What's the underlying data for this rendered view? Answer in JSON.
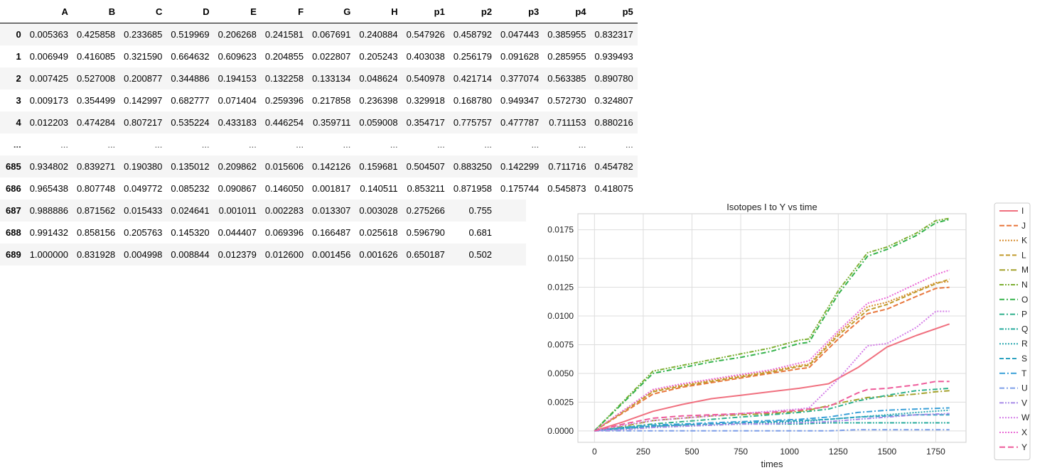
{
  "table": {
    "index_header": "",
    "columns": [
      "A",
      "B",
      "C",
      "D",
      "E",
      "F",
      "G",
      "H",
      "p1",
      "p2",
      "p3",
      "p4",
      "p5"
    ],
    "rows": [
      {
        "index": "0",
        "cells": [
          "0.005363",
          "0.425858",
          "0.233685",
          "0.519969",
          "0.206268",
          "0.241581",
          "0.067691",
          "0.240884",
          "0.547926",
          "0.458792",
          "0.047443",
          "0.385955",
          "0.832317"
        ]
      },
      {
        "index": "1",
        "cells": [
          "0.006949",
          "0.416085",
          "0.321590",
          "0.664632",
          "0.609623",
          "0.204855",
          "0.022807",
          "0.205243",
          "0.403038",
          "0.256179",
          "0.091628",
          "0.285955",
          "0.939493"
        ]
      },
      {
        "index": "2",
        "cells": [
          "0.007425",
          "0.527008",
          "0.200877",
          "0.344886",
          "0.194153",
          "0.132258",
          "0.133134",
          "0.048624",
          "0.540978",
          "0.421714",
          "0.377074",
          "0.563385",
          "0.890780"
        ]
      },
      {
        "index": "3",
        "cells": [
          "0.009173",
          "0.354499",
          "0.142997",
          "0.682777",
          "0.071404",
          "0.259396",
          "0.217858",
          "0.236398",
          "0.329918",
          "0.168780",
          "0.949347",
          "0.572730",
          "0.324807"
        ]
      },
      {
        "index": "4",
        "cells": [
          "0.012203",
          "0.474284",
          "0.807217",
          "0.535224",
          "0.433183",
          "0.446254",
          "0.359711",
          "0.059008",
          "0.354717",
          "0.775757",
          "0.477787",
          "0.711153",
          "0.880216"
        ]
      },
      {
        "index": "...",
        "cells": [
          "...",
          "...",
          "...",
          "...",
          "...",
          "...",
          "...",
          "...",
          "...",
          "...",
          "...",
          "...",
          "..."
        ]
      },
      {
        "index": "685",
        "cells": [
          "0.934802",
          "0.839271",
          "0.190380",
          "0.135012",
          "0.209862",
          "0.015606",
          "0.142126",
          "0.159681",
          "0.504507",
          "0.883250",
          "0.142299",
          "0.711716",
          "0.454782"
        ]
      },
      {
        "index": "686",
        "cells": [
          "0.965438",
          "0.807748",
          "0.049772",
          "0.085232",
          "0.090867",
          "0.146050",
          "0.001817",
          "0.140511",
          "0.853211",
          "0.871958",
          "0.175744",
          "0.545873",
          "0.418075"
        ]
      },
      {
        "index": "687",
        "cells": [
          "0.988886",
          "0.871562",
          "0.015433",
          "0.024641",
          "0.001011",
          "0.002283",
          "0.013307",
          "0.003028",
          "0.275266",
          "0.755",
          "",
          "",
          ""
        ]
      },
      {
        "index": "688",
        "cells": [
          "0.991432",
          "0.858156",
          "0.205763",
          "0.145320",
          "0.044407",
          "0.069396",
          "0.166487",
          "0.025618",
          "0.596790",
          "0.681",
          "",
          "",
          ""
        ]
      },
      {
        "index": "689",
        "cells": [
          "1.000000",
          "0.831928",
          "0.004998",
          "0.008844",
          "0.012379",
          "0.012600",
          "0.001456",
          "0.001626",
          "0.650187",
          "0.502",
          "",
          "",
          ""
        ]
      }
    ]
  },
  "chart_data": {
    "type": "line",
    "title": "Isotopes I to Y vs time",
    "xlabel": "times",
    "ylabel": "",
    "xlim": [
      -85,
      1905
    ],
    "ylim": [
      -0.001,
      0.0189
    ],
    "xticks": [
      0,
      250,
      500,
      750,
      1000,
      1250,
      1500,
      1750
    ],
    "xtick_labels": [
      "0",
      "250",
      "500",
      "750",
      "1000",
      "1250",
      "1500",
      "1750"
    ],
    "yticks": [
      0.0,
      0.0025,
      0.005,
      0.0075,
      0.01,
      0.0125,
      0.015,
      0.0175
    ],
    "ytick_labels": [
      "0.0000",
      "0.0025",
      "0.0050",
      "0.0075",
      "0.0100",
      "0.0125",
      "0.0150",
      "0.0175"
    ],
    "grid": true,
    "legend_position": "outside-right",
    "series": [
      {
        "name": "I",
        "color": "#f0707f",
        "dash": "",
        "x": [
          0,
          150,
          300,
          450,
          600,
          750,
          900,
          1050,
          1200,
          1350,
          1500,
          1650,
          1820
        ],
        "y": [
          0,
          0.0008,
          0.0017,
          0.0023,
          0.0028,
          0.0031,
          0.0034,
          0.0037,
          0.0041,
          0.0055,
          0.0073,
          0.0083,
          0.0093
        ]
      },
      {
        "name": "J",
        "color": "#e8773d",
        "dash": "7,3",
        "x": [
          0,
          150,
          300,
          450,
          600,
          750,
          900,
          1050,
          1100,
          1250,
          1400,
          1500,
          1650,
          1750,
          1820
        ],
        "y": [
          0,
          0.0016,
          0.0032,
          0.0038,
          0.0042,
          0.0046,
          0.005,
          0.0054,
          0.0055,
          0.008,
          0.0102,
          0.0106,
          0.0117,
          0.0124,
          0.0125
        ]
      },
      {
        "name": "K",
        "color": "#d68b2b",
        "dash": "2,2",
        "x": [
          0,
          150,
          300,
          450,
          600,
          750,
          900,
          1050,
          1100,
          1250,
          1400,
          1500,
          1650,
          1750,
          1820
        ],
        "y": [
          0,
          0.0018,
          0.0035,
          0.004,
          0.0044,
          0.0048,
          0.0052,
          0.0057,
          0.0058,
          0.0085,
          0.0108,
          0.0112,
          0.0122,
          0.0129,
          0.013
        ]
      },
      {
        "name": "L",
        "color": "#c19a2b",
        "dash": "6,3",
        "x": [
          0,
          150,
          300,
          450,
          600,
          750,
          900,
          1050,
          1100,
          1250,
          1400,
          1500,
          1650,
          1750,
          1820
        ],
        "y": [
          0,
          0.0017,
          0.0034,
          0.0039,
          0.0043,
          0.0047,
          0.0051,
          0.0056,
          0.0057,
          0.0083,
          0.0105,
          0.011,
          0.0121,
          0.0128,
          0.0132
        ]
      },
      {
        "name": "M",
        "color": "#a4a12b",
        "dash": "8,3,2,3",
        "x": [
          0,
          150,
          300,
          450,
          600,
          750,
          900,
          1050,
          1100,
          1250,
          1400,
          1500,
          1650,
          1750,
          1820
        ],
        "y": [
          0,
          0.0004,
          0.0009,
          0.0011,
          0.0013,
          0.0014,
          0.0015,
          0.0017,
          0.0018,
          0.0024,
          0.0029,
          0.003,
          0.0032,
          0.0034,
          0.0035
        ]
      },
      {
        "name": "N",
        "color": "#7caf32",
        "dash": "6,2,2,2,2,2",
        "x": [
          0,
          150,
          300,
          450,
          600,
          750,
          900,
          1050,
          1100,
          1250,
          1400,
          1500,
          1650,
          1750,
          1820
        ],
        "y": [
          0,
          0.0026,
          0.0052,
          0.0057,
          0.0062,
          0.0067,
          0.0072,
          0.0079,
          0.008,
          0.0122,
          0.0155,
          0.016,
          0.0172,
          0.0183,
          0.0185
        ]
      },
      {
        "name": "O",
        "color": "#33b24b",
        "dash": "7,3,2,3",
        "x": [
          0,
          150,
          300,
          450,
          600,
          750,
          900,
          1050,
          1100,
          1250,
          1400,
          1500,
          1650,
          1750,
          1820
        ],
        "y": [
          0,
          0.0025,
          0.005,
          0.0055,
          0.006,
          0.0064,
          0.0069,
          0.0076,
          0.0077,
          0.0119,
          0.0152,
          0.0158,
          0.017,
          0.0181,
          0.0184
        ]
      },
      {
        "name": "P",
        "color": "#2fb08c",
        "dash": "7,3,2,3",
        "x": [
          0,
          150,
          300,
          450,
          600,
          750,
          900,
          1050,
          1200,
          1350,
          1500,
          1650,
          1820
        ],
        "y": [
          0,
          0.0003,
          0.0006,
          0.0008,
          0.001,
          0.0012,
          0.0014,
          0.0016,
          0.0019,
          0.0026,
          0.0031,
          0.0035,
          0.0037
        ]
      },
      {
        "name": "Q",
        "color": "#27ab9e",
        "dash": "6,2,2,2,2,2",
        "x": [
          0,
          150,
          300,
          450,
          600,
          750,
          900,
          1050,
          1200,
          1350,
          1500,
          1650,
          1820
        ],
        "y": [
          0,
          0.0003,
          0.0004,
          0.0005,
          0.0005,
          0.0006,
          0.0006,
          0.0006,
          0.0007,
          0.0007,
          0.0007,
          0.0007,
          0.0007
        ]
      },
      {
        "name": "R",
        "color": "#2aa7b0",
        "dash": "2,2",
        "x": [
          0,
          150,
          300,
          450,
          600,
          750,
          900,
          1050,
          1200,
          1350,
          1500,
          1650,
          1820
        ],
        "y": [
          0,
          0.0002,
          0.0003,
          0.0004,
          0.0005,
          0.0006,
          0.0007,
          0.0008,
          0.001,
          0.0012,
          0.0014,
          0.0016,
          0.0018
        ]
      },
      {
        "name": "S",
        "color": "#2ca2c0",
        "dash": "6,3",
        "x": [
          0,
          150,
          300,
          450,
          600,
          750,
          900,
          1050,
          1200,
          1350,
          1500,
          1650,
          1820
        ],
        "y": [
          0,
          0.0002,
          0.0004,
          0.0005,
          0.0006,
          0.0007,
          0.0008,
          0.0009,
          0.001,
          0.0012,
          0.0013,
          0.0014,
          0.0014
        ]
      },
      {
        "name": "T",
        "color": "#3aa0d8",
        "dash": "8,3,2,3",
        "x": [
          0,
          150,
          300,
          450,
          600,
          750,
          900,
          1050,
          1200,
          1350,
          1500,
          1650,
          1820
        ],
        "y": [
          0,
          0.0003,
          0.0005,
          0.0006,
          0.0007,
          0.0008,
          0.0009,
          0.001,
          0.0012,
          0.0016,
          0.0018,
          0.0019,
          0.002
        ]
      },
      {
        "name": "U",
        "color": "#7c9ee8",
        "dash": "7,3,2,3",
        "x": [
          0,
          150,
          300,
          450,
          600,
          750,
          900,
          1050,
          1200,
          1350,
          1500,
          1650,
          1820
        ],
        "y": [
          0,
          0.0,
          0.0,
          0.0,
          0.0,
          0.0,
          0.0,
          0.0,
          0.0,
          0.0001,
          0.0001,
          0.0001,
          0.0001
        ]
      },
      {
        "name": "V",
        "color": "#a88be8",
        "dash": "6,2,2,2,2,2",
        "x": [
          0,
          150,
          300,
          450,
          600,
          750,
          900,
          1050,
          1200,
          1350,
          1500,
          1650,
          1820
        ],
        "y": [
          0,
          0.0001,
          0.0003,
          0.0004,
          0.0005,
          0.0006,
          0.0006,
          0.0007,
          0.0008,
          0.001,
          0.0012,
          0.0014,
          0.0015
        ]
      },
      {
        "name": "W",
        "color": "#d47ee8",
        "dash": "2,2",
        "x": [
          0,
          150,
          300,
          450,
          600,
          750,
          900,
          1050,
          1100,
          1250,
          1400,
          1500,
          1650,
          1750,
          1820
        ],
        "y": [
          0,
          0.0005,
          0.0009,
          0.0011,
          0.0013,
          0.0015,
          0.0017,
          0.0019,
          0.002,
          0.0045,
          0.0074,
          0.0076,
          0.009,
          0.0104,
          0.0104
        ]
      },
      {
        "name": "X",
        "color": "#ea6ad6",
        "dash": "2,2",
        "x": [
          0,
          150,
          300,
          450,
          600,
          750,
          900,
          1050,
          1100,
          1250,
          1400,
          1500,
          1650,
          1750,
          1820
        ],
        "y": [
          0,
          0.0018,
          0.0036,
          0.0041,
          0.0045,
          0.0049,
          0.0053,
          0.0059,
          0.0061,
          0.0087,
          0.0111,
          0.0116,
          0.0128,
          0.0136,
          0.014
        ]
      },
      {
        "name": "Y",
        "color": "#ee5b9a",
        "dash": "8,4",
        "x": [
          0,
          150,
          300,
          450,
          600,
          750,
          900,
          1050,
          1200,
          1350,
          1400,
          1500,
          1650,
          1750,
          1820
        ],
        "y": [
          0,
          0.0006,
          0.0011,
          0.0013,
          0.0014,
          0.0015,
          0.0016,
          0.0018,
          0.0021,
          0.0033,
          0.0036,
          0.0037,
          0.004,
          0.0043,
          0.0043
        ]
      }
    ]
  }
}
